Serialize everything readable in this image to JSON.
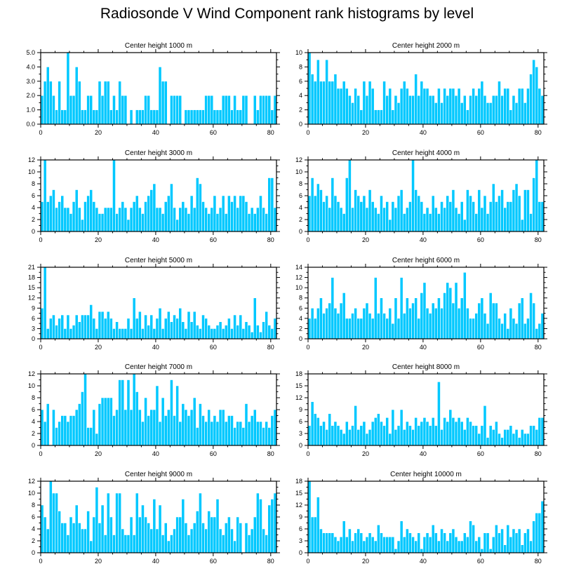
{
  "title": "Radiosonde V Wind Component rank histograms by level",
  "colors": {
    "bar": "#00c8ff",
    "bar_edge": "#ffffff",
    "axis": "#000000"
  },
  "chart_data": [
    {
      "type": "bar",
      "title": "Center height 1000 m",
      "x_range": [
        0,
        82
      ],
      "ylim": [
        0,
        5
      ],
      "xticks": [
        0,
        20,
        40,
        60,
        80
      ],
      "yticks": [
        0,
        1,
        2,
        3,
        4,
        5
      ],
      "ytick_labels": [
        "0.0",
        "1.0",
        "2.0",
        "3.0",
        "4.0",
        "5.0"
      ],
      "values": [
        2,
        3,
        4,
        3,
        2,
        1,
        3,
        1,
        1,
        5,
        2,
        2,
        4,
        3,
        1,
        1,
        2,
        2,
        1,
        1,
        3,
        2,
        3,
        3,
        1,
        2,
        1,
        3,
        2,
        2,
        0,
        1,
        0,
        1,
        1,
        1,
        2,
        2,
        1,
        1,
        1,
        4,
        3,
        3,
        0,
        2,
        2,
        2,
        2,
        0,
        1,
        1,
        1,
        1,
        1,
        1,
        1,
        2,
        2,
        2,
        1,
        1,
        1,
        2,
        2,
        2,
        1,
        2,
        1,
        1,
        2,
        2,
        0,
        0,
        2,
        1,
        2,
        2,
        2,
        2,
        1,
        2
      ]
    },
    {
      "type": "bar",
      "title": "Center height 2000 m",
      "x_range": [
        0,
        82
      ],
      "ylim": [
        0,
        10
      ],
      "xticks": [
        0,
        20,
        40,
        60,
        80
      ],
      "yticks": [
        0,
        2,
        4,
        6,
        8,
        10
      ],
      "ytick_labels": [
        "0",
        "2",
        "4",
        "6",
        "8",
        "10"
      ],
      "values": [
        10,
        7,
        6,
        9,
        6,
        6,
        9,
        6,
        6,
        7,
        5,
        5,
        6,
        5,
        4,
        3,
        5,
        4,
        2,
        6,
        4,
        6,
        5,
        2,
        2,
        2,
        6,
        4,
        5,
        2,
        4,
        3,
        5,
        6,
        5,
        4,
        4,
        7,
        4,
        6,
        5,
        5,
        4,
        4,
        3,
        5,
        3,
        5,
        4,
        5,
        5,
        4,
        5,
        3,
        4,
        2,
        4,
        5,
        4,
        5,
        6,
        4,
        3,
        3,
        4,
        4,
        6,
        4,
        5,
        5,
        2,
        4,
        3,
        5,
        5,
        3,
        5,
        7,
        9,
        8,
        5,
        4
      ]
    },
    {
      "type": "bar",
      "title": "Center height 3000 m",
      "x_range": [
        0,
        82
      ],
      "ylim": [
        0,
        12
      ],
      "xticks": [
        0,
        20,
        40,
        60,
        80
      ],
      "yticks": [
        0,
        2,
        4,
        6,
        8,
        10,
        12
      ],
      "ytick_labels": [
        "0",
        "2",
        "4",
        "6",
        "8",
        "10",
        "12"
      ],
      "values": [
        5,
        12,
        5,
        6,
        7,
        4,
        5,
        6,
        4,
        4,
        3,
        5,
        7,
        4,
        2,
        5,
        6,
        7,
        5,
        4,
        3,
        3,
        4,
        4,
        4,
        12,
        3,
        4,
        5,
        4,
        2,
        4,
        5,
        6,
        4,
        3,
        5,
        6,
        7,
        8,
        4,
        4,
        3,
        5,
        6,
        8,
        4,
        2,
        4,
        5,
        4,
        3,
        6,
        4,
        9,
        8,
        5,
        4,
        3,
        4,
        6,
        3,
        4,
        6,
        3,
        6,
        5,
        6,
        4,
        6,
        6,
        5,
        3,
        4,
        3,
        4,
        6,
        4,
        3,
        9,
        9,
        4
      ]
    },
    {
      "type": "bar",
      "title": "Center height 4000 m",
      "x_range": [
        0,
        82
      ],
      "ylim": [
        0,
        12
      ],
      "xticks": [
        0,
        20,
        40,
        60,
        80
      ],
      "yticks": [
        0,
        2,
        4,
        6,
        8,
        10,
        12
      ],
      "ytick_labels": [
        "0",
        "2",
        "4",
        "6",
        "8",
        "10",
        "12"
      ],
      "values": [
        6,
        9,
        6,
        8,
        7,
        5,
        6,
        4,
        9,
        6,
        5,
        4,
        3,
        9,
        12,
        4,
        7,
        6,
        5,
        6,
        4,
        7,
        5,
        4,
        3,
        6,
        4,
        5,
        2,
        5,
        4,
        6,
        7,
        3,
        4,
        5,
        12,
        7,
        6,
        5,
        3,
        4,
        3,
        6,
        4,
        3,
        5,
        4,
        6,
        5,
        7,
        4,
        3,
        5,
        2,
        7,
        6,
        5,
        3,
        7,
        4,
        6,
        3,
        5,
        8,
        5,
        6,
        7,
        4,
        5,
        5,
        7,
        8,
        6,
        2,
        7,
        7,
        3,
        9,
        12,
        5,
        5
      ]
    },
    {
      "type": "bar",
      "title": "Center height 5000 m",
      "x_range": [
        0,
        82
      ],
      "ylim": [
        0,
        21
      ],
      "xticks": [
        0,
        20,
        40,
        60,
        80
      ],
      "yticks": [
        0,
        3,
        6,
        9,
        12,
        15,
        18,
        21
      ],
      "ytick_labels": [
        "0",
        "3",
        "6",
        "9",
        "12",
        "15",
        "18",
        "21"
      ],
      "values": [
        9,
        21,
        3,
        6,
        7,
        4,
        6,
        7,
        3,
        7,
        3,
        4,
        7,
        5,
        7,
        7,
        7,
        10,
        6,
        3,
        8,
        8,
        6,
        8,
        6,
        3,
        5,
        3,
        3,
        3,
        6,
        3,
        12,
        6,
        8,
        3,
        7,
        4,
        7,
        3,
        6,
        9,
        3,
        6,
        8,
        5,
        7,
        6,
        9,
        5,
        3,
        8,
        5,
        8,
        4,
        3,
        7,
        6,
        4,
        3,
        3,
        4,
        5,
        3,
        4,
        6,
        3,
        7,
        4,
        7,
        3,
        5,
        4,
        2,
        12,
        4,
        2,
        5,
        8,
        4,
        3,
        6
      ]
    },
    {
      "type": "bar",
      "title": "Center height 6000 m",
      "x_range": [
        0,
        82
      ],
      "ylim": [
        0,
        14
      ],
      "xticks": [
        0,
        20,
        40,
        60,
        80
      ],
      "yticks": [
        0,
        2,
        4,
        6,
        8,
        10,
        12,
        14
      ],
      "ytick_labels": [
        "0",
        "2",
        "4",
        "6",
        "8",
        "10",
        "12",
        "14"
      ],
      "values": [
        4,
        6,
        4,
        6,
        8,
        5,
        6,
        7,
        12,
        6,
        5,
        7,
        9,
        4,
        4,
        5,
        6,
        4,
        4,
        6,
        7,
        5,
        4,
        12,
        5,
        8,
        5,
        4,
        6,
        3,
        8,
        4,
        12,
        5,
        8,
        6,
        7,
        8,
        4,
        9,
        11,
        6,
        5,
        7,
        6,
        8,
        6,
        9,
        11,
        10,
        7,
        11,
        6,
        8,
        13,
        6,
        4,
        4,
        5,
        7,
        8,
        5,
        3,
        9,
        7,
        7,
        4,
        3,
        5,
        2,
        6,
        4,
        3,
        7,
        8,
        3,
        4,
        9,
        7,
        2,
        3,
        5
      ]
    },
    {
      "type": "bar",
      "title": "Center height 7000 m",
      "x_range": [
        0,
        82
      ],
      "ylim": [
        0,
        12
      ],
      "xticks": [
        0,
        20,
        40,
        60,
        80
      ],
      "yticks": [
        0,
        2,
        4,
        6,
        8,
        10,
        12
      ],
      "ytick_labels": [
        "0",
        "2",
        "4",
        "6",
        "8",
        "10",
        "12"
      ],
      "values": [
        6,
        4,
        7,
        0,
        6,
        3,
        4,
        5,
        5,
        4,
        5,
        5,
        6,
        7,
        9,
        12,
        3,
        3,
        6,
        2,
        7,
        8,
        8,
        8,
        8,
        5,
        6,
        11,
        11,
        6,
        11,
        6,
        12,
        9,
        6,
        4,
        8,
        5,
        6,
        6,
        10,
        4,
        8,
        5,
        6,
        11,
        5,
        10,
        4,
        7,
        6,
        5,
        6,
        8,
        3,
        7,
        5,
        4,
        6,
        4,
        5,
        4,
        6,
        6,
        4,
        5,
        5,
        3,
        4,
        4,
        3,
        7,
        4,
        5,
        6,
        4,
        4,
        3,
        4,
        3,
        5,
        6
      ]
    },
    {
      "type": "bar",
      "title": "Center height 8000 m",
      "x_range": [
        0,
        82
      ],
      "ylim": [
        0,
        18
      ],
      "xticks": [
        0,
        20,
        40,
        60,
        80
      ],
      "yticks": [
        0,
        3,
        6,
        9,
        12,
        15,
        18
      ],
      "ytick_labels": [
        "0",
        "3",
        "6",
        "9",
        "12",
        "15",
        "18"
      ],
      "values": [
        5,
        11,
        8,
        7,
        5,
        6,
        4,
        8,
        5,
        6,
        5,
        4,
        3,
        6,
        4,
        5,
        10,
        4,
        5,
        6,
        3,
        4,
        6,
        7,
        8,
        6,
        5,
        7,
        3,
        9,
        4,
        5,
        9,
        4,
        6,
        5,
        4,
        7,
        5,
        6,
        7,
        6,
        5,
        7,
        5,
        16,
        4,
        7,
        6,
        9,
        7,
        6,
        7,
        6,
        4,
        7,
        6,
        5,
        5,
        3,
        5,
        10,
        2,
        5,
        4,
        6,
        3,
        2,
        4,
        4,
        5,
        3,
        4,
        2,
        4,
        3,
        3,
        5,
        5,
        4,
        7,
        7
      ]
    },
    {
      "type": "bar",
      "title": "Center height 9000 m",
      "x_range": [
        0,
        82
      ],
      "ylim": [
        0,
        12
      ],
      "xticks": [
        0,
        20,
        40,
        60,
        80
      ],
      "yticks": [
        0,
        2,
        4,
        6,
        8,
        10,
        12
      ],
      "ytick_labels": [
        "0",
        "2",
        "4",
        "6",
        "8",
        "10",
        "12"
      ],
      "values": [
        8,
        6,
        4,
        12,
        10,
        10,
        7,
        5,
        5,
        3,
        6,
        5,
        8,
        5,
        4,
        4,
        7,
        2,
        6,
        11,
        5,
        8,
        3,
        10,
        6,
        3,
        10,
        10,
        4,
        3,
        3,
        6,
        3,
        10,
        6,
        8,
        6,
        5,
        4,
        9,
        4,
        8,
        3,
        5,
        2,
        3,
        4,
        6,
        6,
        9,
        5,
        3,
        4,
        5,
        7,
        10,
        5,
        4,
        7,
        6,
        6,
        9,
        4,
        3,
        5,
        6,
        4,
        2,
        6,
        5,
        0,
        5,
        3,
        4,
        6,
        10,
        9,
        4,
        3,
        8,
        9,
        10
      ]
    },
    {
      "type": "bar",
      "title": "Center height 10000 m",
      "x_range": [
        0,
        82
      ],
      "ylim": [
        0,
        18
      ],
      "xticks": [
        0,
        20,
        40,
        60,
        80
      ],
      "yticks": [
        0,
        3,
        6,
        9,
        12,
        15,
        18
      ],
      "ytick_labels": [
        "0",
        "3",
        "6",
        "9",
        "12",
        "15",
        "18"
      ],
      "values": [
        18,
        9,
        9,
        14,
        6,
        5,
        5,
        5,
        5,
        4,
        3,
        4,
        8,
        4,
        6,
        3,
        5,
        6,
        5,
        3,
        4,
        5,
        4,
        3,
        7,
        5,
        4,
        4,
        4,
        4,
        1,
        3,
        8,
        4,
        6,
        5,
        4,
        3,
        5,
        1,
        4,
        5,
        4,
        7,
        5,
        3,
        6,
        5,
        3,
        5,
        6,
        4,
        3,
        3,
        5,
        4,
        8,
        7,
        3,
        4,
        1,
        5,
        5,
        1,
        4,
        7,
        5,
        6,
        2,
        7,
        4,
        6,
        5,
        6,
        2,
        5,
        6,
        3,
        8,
        10,
        10,
        13
      ]
    }
  ]
}
